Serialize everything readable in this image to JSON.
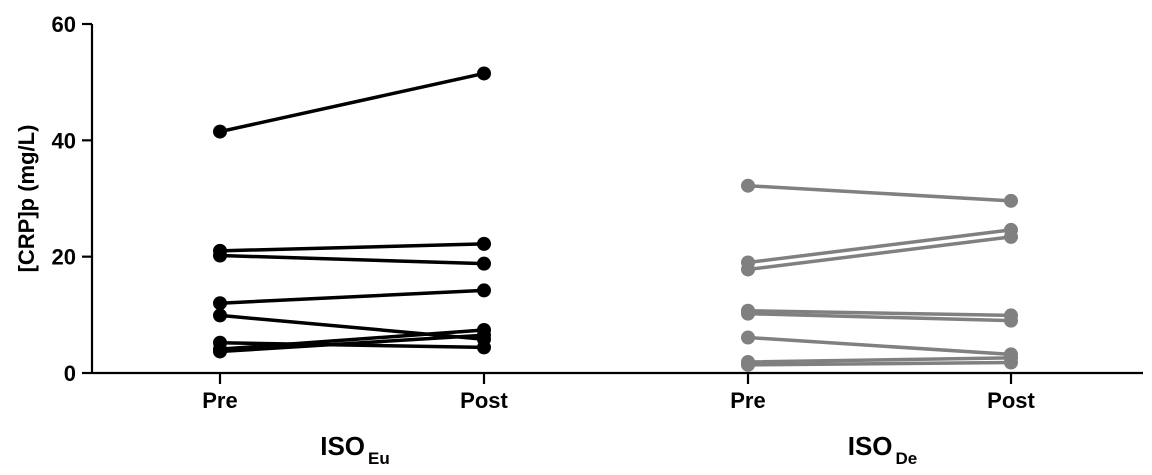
{
  "chart_data": {
    "type": "line",
    "title": "",
    "ylabel": "[CRP]p (mg/L)",
    "ylim": [
      0,
      60
    ],
    "yticks": [
      0,
      20,
      40,
      60
    ],
    "grid": false,
    "legend": "none",
    "condition_labels": [
      "Pre",
      "Post"
    ],
    "groups": [
      {
        "label_main": "ISO",
        "label_sub": "Eu",
        "color": "#000000",
        "pairs": [
          {
            "pre": 41.5,
            "post": 51.5
          },
          {
            "pre": 21.0,
            "post": 22.2
          },
          {
            "pre": 20.2,
            "post": 18.8
          },
          {
            "pre": 12.0,
            "post": 14.2
          },
          {
            "pre": 9.9,
            "post": 5.8
          },
          {
            "pre": 5.2,
            "post": 4.4
          },
          {
            "pre": 4.1,
            "post": 7.4
          },
          {
            "pre": 3.7,
            "post": 6.5
          }
        ]
      },
      {
        "label_main": "ISO",
        "label_sub": "De",
        "color": "#808080",
        "pairs": [
          {
            "pre": 32.2,
            "post": 29.6
          },
          {
            "pre": 19.0,
            "post": 24.6
          },
          {
            "pre": 17.8,
            "post": 23.4
          },
          {
            "pre": 10.7,
            "post": 9.9
          },
          {
            "pre": 10.2,
            "post": 9.0
          },
          {
            "pre": 6.1,
            "post": 3.2
          },
          {
            "pre": 1.9,
            "post": 2.6
          },
          {
            "pre": 1.4,
            "post": 1.8
          }
        ]
      }
    ]
  }
}
